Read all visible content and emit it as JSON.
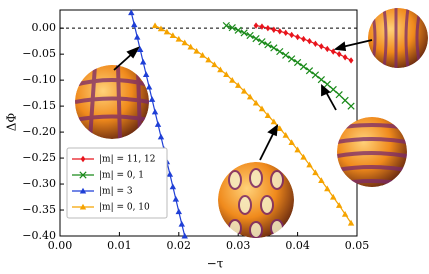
{
  "chart_data": {
    "type": "line",
    "xlabel": "−τ",
    "ylabel": "ΔΦ",
    "xlim": [
      0,
      0.05
    ],
    "ylim": [
      -0.4,
      0.035
    ],
    "xticks": [
      {
        "value": 0,
        "label": "0.00"
      },
      {
        "value": 0.01,
        "label": "0.01"
      },
      {
        "value": 0.02,
        "label": "0.02"
      },
      {
        "value": 0.03,
        "label": "0.03"
      },
      {
        "value": 0.04,
        "label": "0.04"
      },
      {
        "value": 0.05,
        "label": "0.05"
      }
    ],
    "yticks": [
      {
        "value": 0,
        "label": "0.00"
      },
      {
        "value": -0.05,
        "label": "−0.05"
      },
      {
        "value": -0.1,
        "label": "−0.10"
      },
      {
        "value": -0.15,
        "label": "−0.15"
      },
      {
        "value": -0.2,
        "label": "−0.20"
      },
      {
        "value": -0.25,
        "label": "−0.25"
      },
      {
        "value": -0.3,
        "label": "−0.30"
      },
      {
        "value": -0.35,
        "label": "−0.35"
      },
      {
        "value": -0.4,
        "label": "−0.40"
      }
    ],
    "hline": 0,
    "legend": "lower left",
    "series": [
      {
        "name": "|m| = 11, 12",
        "color": "#e8141c",
        "marker": "diamond",
        "x": [
          0.033,
          0.034,
          0.035,
          0.036,
          0.037,
          0.038,
          0.039,
          0.04,
          0.041,
          0.042,
          0.043,
          0.044,
          0.045,
          0.046,
          0.047,
          0.048,
          0.049
        ],
        "values": [
          0.005,
          0.003,
          0.0,
          -0.003,
          -0.006,
          -0.009,
          -0.013,
          -0.017,
          -0.021,
          -0.025,
          -0.03,
          -0.035,
          -0.04,
          -0.045,
          -0.05,
          -0.056,
          -0.062
        ]
      },
      {
        "name": "|m| = 0, 1",
        "color": "#1a8a1a",
        "marker": "x",
        "x": [
          0.028,
          0.029,
          0.03,
          0.031,
          0.032,
          0.033,
          0.034,
          0.035,
          0.036,
          0.037,
          0.038,
          0.039,
          0.04,
          0.041,
          0.042,
          0.043,
          0.044,
          0.045,
          0.046,
          0.047,
          0.048,
          0.049
        ],
        "values": [
          0.005,
          0.001,
          -0.004,
          -0.009,
          -0.014,
          -0.02,
          -0.026,
          -0.032,
          -0.038,
          -0.045,
          -0.052,
          -0.059,
          -0.066,
          -0.074,
          -0.082,
          -0.09,
          -0.099,
          -0.108,
          -0.118,
          -0.128,
          -0.139,
          -0.15
        ]
      },
      {
        "name": "|m| = 3",
        "color": "#1f3fd6",
        "marker": "triangle",
        "x": [
          0.012,
          0.0125,
          0.013,
          0.0135,
          0.014,
          0.0145,
          0.015,
          0.0155,
          0.016,
          0.0165,
          0.017,
          0.0175,
          0.018,
          0.0185,
          0.019,
          0.0195,
          0.02,
          0.0205,
          0.021
        ],
        "values": [
          0.03,
          0.007,
          -0.017,
          -0.041,
          -0.065,
          -0.089,
          -0.113,
          -0.137,
          -0.161,
          -0.185,
          -0.209,
          -0.233,
          -0.257,
          -0.281,
          -0.305,
          -0.329,
          -0.353,
          -0.377,
          -0.4
        ]
      },
      {
        "name": "|m| = 0, 10",
        "color": "#f5a300",
        "marker": "triangle",
        "x": [
          0.016,
          0.017,
          0.018,
          0.019,
          0.02,
          0.021,
          0.022,
          0.023,
          0.024,
          0.025,
          0.026,
          0.027,
          0.028,
          0.029,
          0.03,
          0.031,
          0.032,
          0.033,
          0.034,
          0.035,
          0.036,
          0.037,
          0.038,
          0.039,
          0.04,
          0.041,
          0.042,
          0.043,
          0.044,
          0.045,
          0.046,
          0.047,
          0.048,
          0.049
        ],
        "values": [
          0.005,
          -0.001,
          -0.007,
          -0.014,
          -0.021,
          -0.028,
          -0.036,
          -0.044,
          -0.052,
          -0.061,
          -0.07,
          -0.08,
          -0.089,
          -0.1,
          -0.11,
          -0.121,
          -0.132,
          -0.144,
          -0.155,
          -0.168,
          -0.18,
          -0.193,
          -0.206,
          -0.22,
          -0.234,
          -0.248,
          -0.263,
          -0.278,
          -0.293,
          -0.309,
          -0.325,
          -0.341,
          -0.358,
          -0.375
        ]
      }
    ]
  }
}
